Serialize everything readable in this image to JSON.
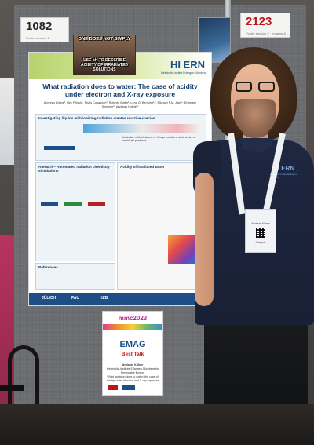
{
  "tags": {
    "left_number": "1082",
    "left_sub": "Poster session 1",
    "right_number": "2123",
    "right_sub": "Poster session 2 · Imaging & ..."
  },
  "poster": {
    "logo": "HI ERN",
    "logo_sub": "Helmholtz-Institut Erlangen-Nürnberg",
    "title": "What radiation does to water: The case of acidity under electron and X-ray exposure",
    "authors": "Andreas Kühne¹, Birk Fritsch¹, Thaïs Couasnon², Roberto Bottin³, Lena G. Benning²,³, Michael P.M. Jank⁴, Erdmann Spiecker⁵, Andreas Hutzler¹",
    "section_a_header": "Investigating liquids with ionizing radiation creates reactive species",
    "section_a_text": "Ionization with electrons or X-rays creates a rapid series of radiolysis products.",
    "section_b_header": "AuRaCh – Automated radiation chemistry simulations",
    "section_c_header": "Acidity of irradiated water",
    "section_d_header": "References",
    "footer_logos": [
      "JÜLICH",
      "FAU",
      "HZB"
    ]
  },
  "meme": {
    "top": "ONE DOES NOT SIMPLY",
    "bottom": "USE pH TO DESCRIBE ACIDITY OF IRRADIATED SOLUTIONS"
  },
  "award": {
    "event": "mmc2023",
    "organization": "EMAG",
    "title": "Best Talk",
    "recipient": "Andreas Kühne",
    "affiliation": "Helmholtz-Institute Erlangen-Nürnberg for Renewable Energy",
    "talk": "What radiation does to water: the case of acidity under electron and X-ray exposure"
  },
  "person": {
    "shirt_logo": "HI ERN",
    "shirt_logo_sub": "Helmholtz-Institut Erlangen-Nürnberg",
    "badge_name": "Andreas Kühne",
    "badge_role": "Delegate"
  }
}
